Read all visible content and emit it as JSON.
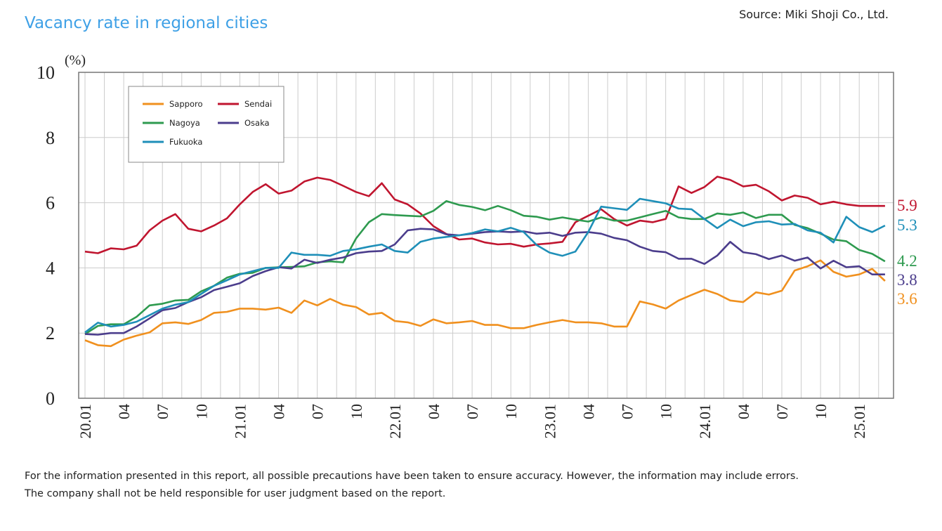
{
  "chart_data": {
    "type": "line",
    "title": "Vacancy rate in regional cities",
    "source": "Source: Miki Shoji Co., Ltd.",
    "y_unit": "(%)",
    "notes": [
      "For the information presented in this report, all possible precautions have been taken to ensure accuracy. However, the information may include errors.",
      "The company shall not be held responsible for user judgment based on the report."
    ],
    "categories": [
      "20.01",
      null,
      null,
      "04",
      null,
      null,
      "07",
      null,
      null,
      "10",
      null,
      null,
      "21.01",
      null,
      null,
      "04",
      null,
      null,
      "07",
      null,
      null,
      "10",
      null,
      null,
      "22.01",
      null,
      null,
      "04",
      null,
      null,
      "07",
      null,
      null,
      "10",
      null,
      null,
      "23.01",
      null,
      null,
      "04",
      null,
      null,
      "07",
      null,
      null,
      "10",
      null,
      null,
      "24.01",
      null,
      null,
      "04",
      null,
      null,
      "07",
      null,
      null,
      "10",
      null,
      null,
      "25.01",
      null,
      null
    ],
    "ylim": [
      0,
      10
    ],
    "yticks": [
      0,
      2,
      4,
      6,
      8,
      10
    ],
    "grid": true,
    "series": [
      {
        "name": "Sapporo",
        "color": "#f0901e",
        "values": [
          1.78,
          1.63,
          1.6,
          1.8,
          1.92,
          2.02,
          2.3,
          2.33,
          2.28,
          2.4,
          2.62,
          2.65,
          2.75,
          2.75,
          2.72,
          2.78,
          2.62,
          3.0,
          2.85,
          3.05,
          2.87,
          2.8,
          2.57,
          2.62,
          2.37,
          2.33,
          2.22,
          2.42,
          2.3,
          2.33,
          2.37,
          2.25,
          2.25,
          2.15,
          2.15,
          2.25,
          2.33,
          2.4,
          2.33,
          2.33,
          2.3,
          2.2,
          2.2,
          2.97,
          2.88,
          2.75,
          3.0,
          3.17,
          3.33,
          3.2,
          3.0,
          2.95,
          3.25,
          3.18,
          3.3,
          3.92,
          4.05,
          4.23,
          3.88,
          3.73,
          3.8,
          3.97,
          3.6
        ]
      },
      {
        "name": "Sendai",
        "color": "#c0152f",
        "values": [
          4.5,
          4.45,
          4.6,
          4.57,
          4.68,
          5.15,
          5.45,
          5.65,
          5.2,
          5.12,
          5.3,
          5.52,
          5.95,
          6.33,
          6.57,
          6.28,
          6.37,
          6.65,
          6.77,
          6.7,
          6.52,
          6.33,
          6.2,
          6.6,
          6.1,
          5.95,
          5.67,
          5.28,
          5.04,
          4.87,
          4.9,
          4.78,
          4.72,
          4.74,
          4.65,
          4.72,
          4.75,
          4.8,
          5.4,
          5.6,
          5.8,
          5.5,
          5.3,
          5.45,
          5.4,
          5.5,
          6.5,
          6.3,
          6.48,
          6.8,
          6.7,
          6.5,
          6.55,
          6.35,
          6.07,
          6.22,
          6.15,
          5.95,
          6.03,
          5.95,
          5.9,
          5.9,
          5.9
        ]
      },
      {
        "name": "Nagoya",
        "color": "#2e9a4f",
        "values": [
          1.97,
          2.22,
          2.27,
          2.27,
          2.5,
          2.85,
          2.9,
          3.0,
          3.02,
          3.28,
          3.45,
          3.7,
          3.82,
          3.85,
          4.0,
          4.02,
          4.03,
          4.05,
          4.17,
          4.2,
          4.17,
          4.9,
          5.4,
          5.65,
          5.62,
          5.6,
          5.58,
          5.75,
          6.05,
          5.93,
          5.87,
          5.77,
          5.9,
          5.77,
          5.6,
          5.57,
          5.48,
          5.55,
          5.48,
          5.42,
          5.55,
          5.45,
          5.45,
          5.55,
          5.65,
          5.75,
          5.55,
          5.5,
          5.5,
          5.67,
          5.63,
          5.7,
          5.53,
          5.63,
          5.63,
          5.32,
          5.22,
          5.05,
          4.87,
          4.82,
          4.55,
          4.43,
          4.2
        ]
      },
      {
        "name": "Osaka",
        "color": "#4b3d8c",
        "values": [
          1.97,
          1.95,
          2.0,
          2.0,
          2.2,
          2.45,
          2.7,
          2.77,
          2.95,
          3.1,
          3.32,
          3.42,
          3.53,
          3.75,
          3.9,
          4.02,
          3.98,
          4.25,
          4.15,
          4.25,
          4.32,
          4.45,
          4.5,
          4.52,
          4.72,
          5.15,
          5.2,
          5.18,
          5.03,
          5.0,
          5.05,
          5.1,
          5.12,
          5.1,
          5.12,
          5.05,
          5.08,
          4.98,
          5.08,
          5.1,
          5.05,
          4.92,
          4.85,
          4.65,
          4.52,
          4.48,
          4.28,
          4.28,
          4.12,
          4.38,
          4.8,
          4.48,
          4.42,
          4.27,
          4.38,
          4.22,
          4.32,
          3.98,
          4.22,
          4.02,
          4.05,
          3.8,
          3.8
        ]
      },
      {
        "name": "Fukuoka",
        "color": "#1e8fb8",
        "values": [
          2.02,
          2.32,
          2.2,
          2.25,
          2.35,
          2.55,
          2.75,
          2.87,
          2.95,
          3.2,
          3.45,
          3.62,
          3.8,
          3.9,
          4.0,
          4.0,
          4.47,
          4.4,
          4.4,
          4.37,
          4.52,
          4.57,
          4.65,
          4.72,
          4.52,
          4.47,
          4.8,
          4.9,
          4.95,
          5.0,
          5.07,
          5.18,
          5.12,
          5.23,
          5.1,
          4.7,
          4.47,
          4.37,
          4.5,
          5.1,
          5.88,
          5.83,
          5.78,
          6.12,
          6.05,
          5.98,
          5.82,
          5.8,
          5.5,
          5.22,
          5.48,
          5.28,
          5.4,
          5.43,
          5.33,
          5.35,
          5.15,
          5.08,
          4.78,
          5.57,
          5.25,
          5.1,
          5.3
        ]
      }
    ]
  }
}
